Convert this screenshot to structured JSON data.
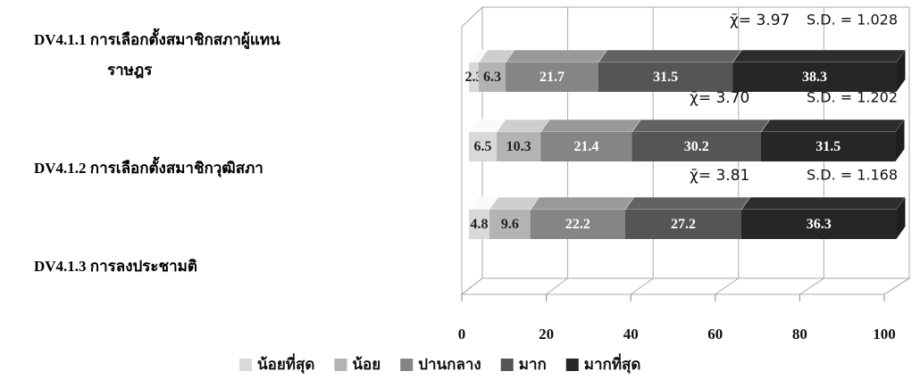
{
  "chart_data": {
    "type": "stacked-bar-3d",
    "categories": [
      "DV4.1.1 การเลือกตั้งสมาชิกสภาผู้แทนราษฎร",
      "DV4.1.2 การเลือกตั้งสมาชิกวุฒิสภา",
      "DV4.1.3 การลงประชามติ"
    ],
    "series": [
      {
        "name": "น้อยที่สุด",
        "color": "#d9d9d9",
        "values": [
          2.3,
          6.5,
          4.8
        ]
      },
      {
        "name": "น้อย",
        "color": "#b3b3b3",
        "values": [
          6.3,
          10.3,
          9.6
        ]
      },
      {
        "name": "ปานกลาง",
        "color": "#858585",
        "values": [
          21.7,
          21.4,
          22.2
        ]
      },
      {
        "name": "มาก",
        "color": "#555555",
        "values": [
          31.5,
          30.2,
          27.2
        ]
      },
      {
        "name": "มากที่สุด",
        "color": "#262626",
        "values": [
          38.3,
          31.5,
          36.3
        ]
      }
    ],
    "mean_labels": [
      "χ̄= 3.97",
      "χ̄= 3.70",
      "χ̄= 3.81"
    ],
    "sd_labels": [
      "S.D. = 1.028",
      "S.D. = 1.202",
      "S.D. = 1.168"
    ],
    "xlim": [
      0,
      100
    ],
    "xticks": [
      0,
      20,
      40,
      60,
      80,
      100
    ],
    "grid": true
  }
}
